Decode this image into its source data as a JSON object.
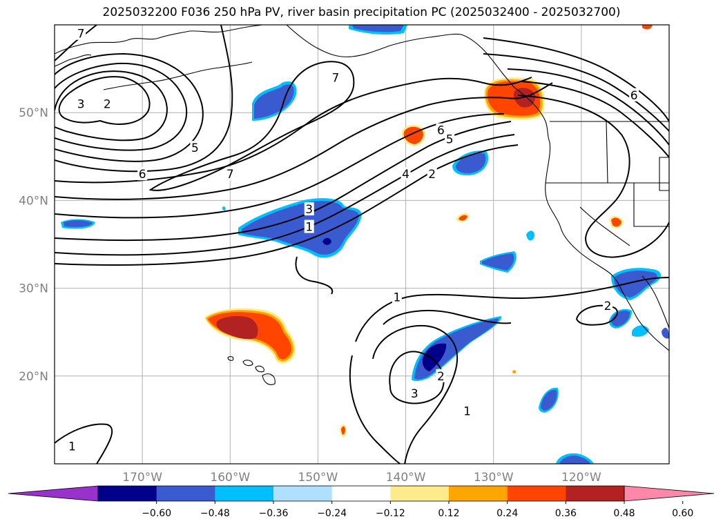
{
  "title": "2025032200 F036 250 hPa PV, river basin precipitation PC (2025032400 - 2025032700)",
  "map": {
    "lon_range": [
      -180,
      -110
    ],
    "lat_range": [
      10,
      60
    ],
    "lat_ticks": [
      {
        "value": 50,
        "label": "50°N"
      },
      {
        "value": 40,
        "label": "40°N"
      },
      {
        "value": 30,
        "label": "30°N"
      },
      {
        "value": 20,
        "label": "20°N"
      }
    ],
    "lon_ticks": [
      {
        "value": -170,
        "label": "170°W"
      },
      {
        "value": -160,
        "label": "160°W"
      },
      {
        "value": -150,
        "label": "150°W"
      },
      {
        "value": -140,
        "label": "140°W"
      },
      {
        "value": -130,
        "label": "130°W"
      },
      {
        "value": -120,
        "label": "120°W"
      }
    ],
    "pv_contour_labels": [
      {
        "text": "7",
        "lon": -177,
        "lat": 59
      },
      {
        "text": "3",
        "lon": -177,
        "lat": 51
      },
      {
        "text": "2",
        "lon": -174,
        "lat": 51
      },
      {
        "text": "5",
        "lon": -164,
        "lat": 46
      },
      {
        "text": "6",
        "lon": -170,
        "lat": 43
      },
      {
        "text": "7",
        "lon": -160,
        "lat": 43
      },
      {
        "text": "7",
        "lon": -148,
        "lat": 54
      },
      {
        "text": "6",
        "lon": -136,
        "lat": 48
      },
      {
        "text": "5",
        "lon": -135,
        "lat": 47
      },
      {
        "text": "4",
        "lon": -140,
        "lat": 43
      },
      {
        "text": "2",
        "lon": -137,
        "lat": 43
      },
      {
        "text": "3",
        "lon": -151,
        "lat": 39
      },
      {
        "text": "1",
        "lon": -151,
        "lat": 37
      },
      {
        "text": "6",
        "lon": -114,
        "lat": 52
      },
      {
        "text": "1",
        "lon": -141,
        "lat": 29
      },
      {
        "text": "2",
        "lon": -117,
        "lat": 28
      },
      {
        "text": "3",
        "lon": -139,
        "lat": 18
      },
      {
        "text": "2",
        "lon": -136,
        "lat": 20
      },
      {
        "text": "1",
        "lon": -133,
        "lat": 16
      },
      {
        "text": "1",
        "lon": -178,
        "lat": 12
      }
    ]
  },
  "colorbar": {
    "colors": [
      "#9932cc",
      "#00008b",
      "#3a5bcf",
      "#00bfff",
      "#b0e0ff",
      "#ffffff",
      "#ffeb8a",
      "#ffa500",
      "#ff4500",
      "#b22222",
      "#ff88aa"
    ],
    "tick_labels": [
      "−0.60",
      "−0.48",
      "−0.36",
      "−0.24",
      "−0.12",
      "0.12",
      "0.24",
      "0.36",
      "0.48",
      "0.60"
    ]
  }
}
